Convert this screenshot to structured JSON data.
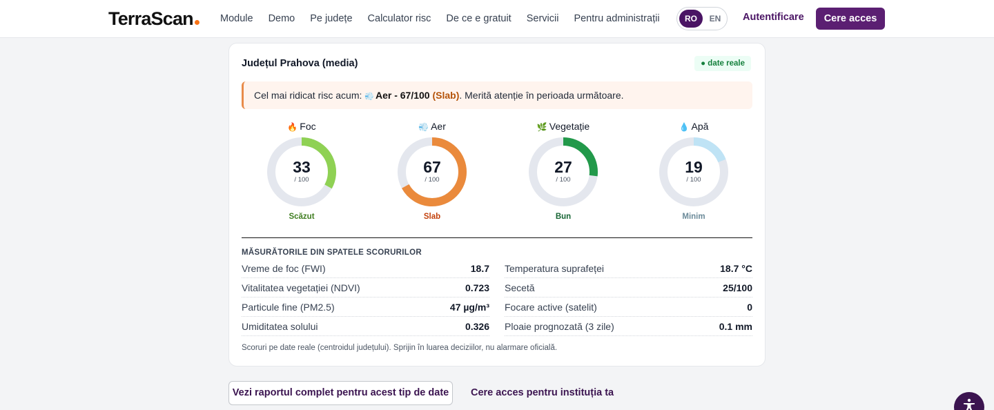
{
  "header": {
    "logo": "TerraScan",
    "nav": [
      "Module",
      "Demo",
      "Pe județe",
      "Calculator risc",
      "De ce e gratuit",
      "Servicii",
      "Pentru administrații"
    ],
    "lang_ro": "RO",
    "lang_en": "EN",
    "login": "Autentificare",
    "cta": "Cere acces"
  },
  "card": {
    "title": "Județul Prahova (media)",
    "badge": "● date reale",
    "alert": {
      "prefix": "Cel mai ridicat risc acum:",
      "strong": "Aer - 67/100",
      "level": "(Slab)",
      "suffix": ". Merită atenție în perioada următoare."
    },
    "gauges": [
      {
        "icon": "fire-icon",
        "glyph": "🔥",
        "label": "Foc",
        "value": 33,
        "max_label": "/ 100",
        "status": "Scăzut",
        "color": "#8fd154",
        "status_color": "#3f7d20"
      },
      {
        "icon": "wind-icon",
        "glyph": "💨",
        "label": "Aer",
        "value": 67,
        "max_label": "/ 100",
        "status": "Slab",
        "color": "#ea8a3c",
        "status_color": "#c2410c"
      },
      {
        "icon": "leaf-icon",
        "glyph": "🌿",
        "label": "Vegetație",
        "value": 27,
        "max_label": "/ 100",
        "status": "Bun",
        "color": "#22994a",
        "status_color": "#166534"
      },
      {
        "icon": "droplet-icon",
        "glyph": "💧",
        "label": "Apă",
        "value": 19,
        "max_label": "/ 100",
        "status": "Minim",
        "color": "#bfe3f5",
        "status_color": "#6b8a99"
      }
    ],
    "measurements_title": "MĂSURĂTORILE DIN SPATELE SCORURILOR",
    "measurements_left": [
      {
        "label": "Vreme de foc (FWI)",
        "value": "18.7"
      },
      {
        "label": "Vitalitatea vegetației (NDVI)",
        "value": "0.723"
      },
      {
        "label": "Particule fine (PM2.5)",
        "value": "47 µg/m³"
      },
      {
        "label": "Umiditatea solului",
        "value": "0.326"
      }
    ],
    "measurements_right": [
      {
        "label": "Temperatura suprafeței",
        "value": "18.7 °C"
      },
      {
        "label": "Secetă",
        "value": "25/100"
      },
      {
        "label": "Focare active (satelit)",
        "value": "0"
      },
      {
        "label": "Ploaie prognozată (3 zile)",
        "value": "0.1 mm"
      }
    ],
    "footnote": "Scoruri pe date reale (centroidul județului). Sprijin în luarea deciziilor, nu alarmare oficială."
  },
  "actions": {
    "report": "Vezi raportul complet pentru acest tip de date",
    "institution": "Cere acces pentru instituția ta"
  }
}
